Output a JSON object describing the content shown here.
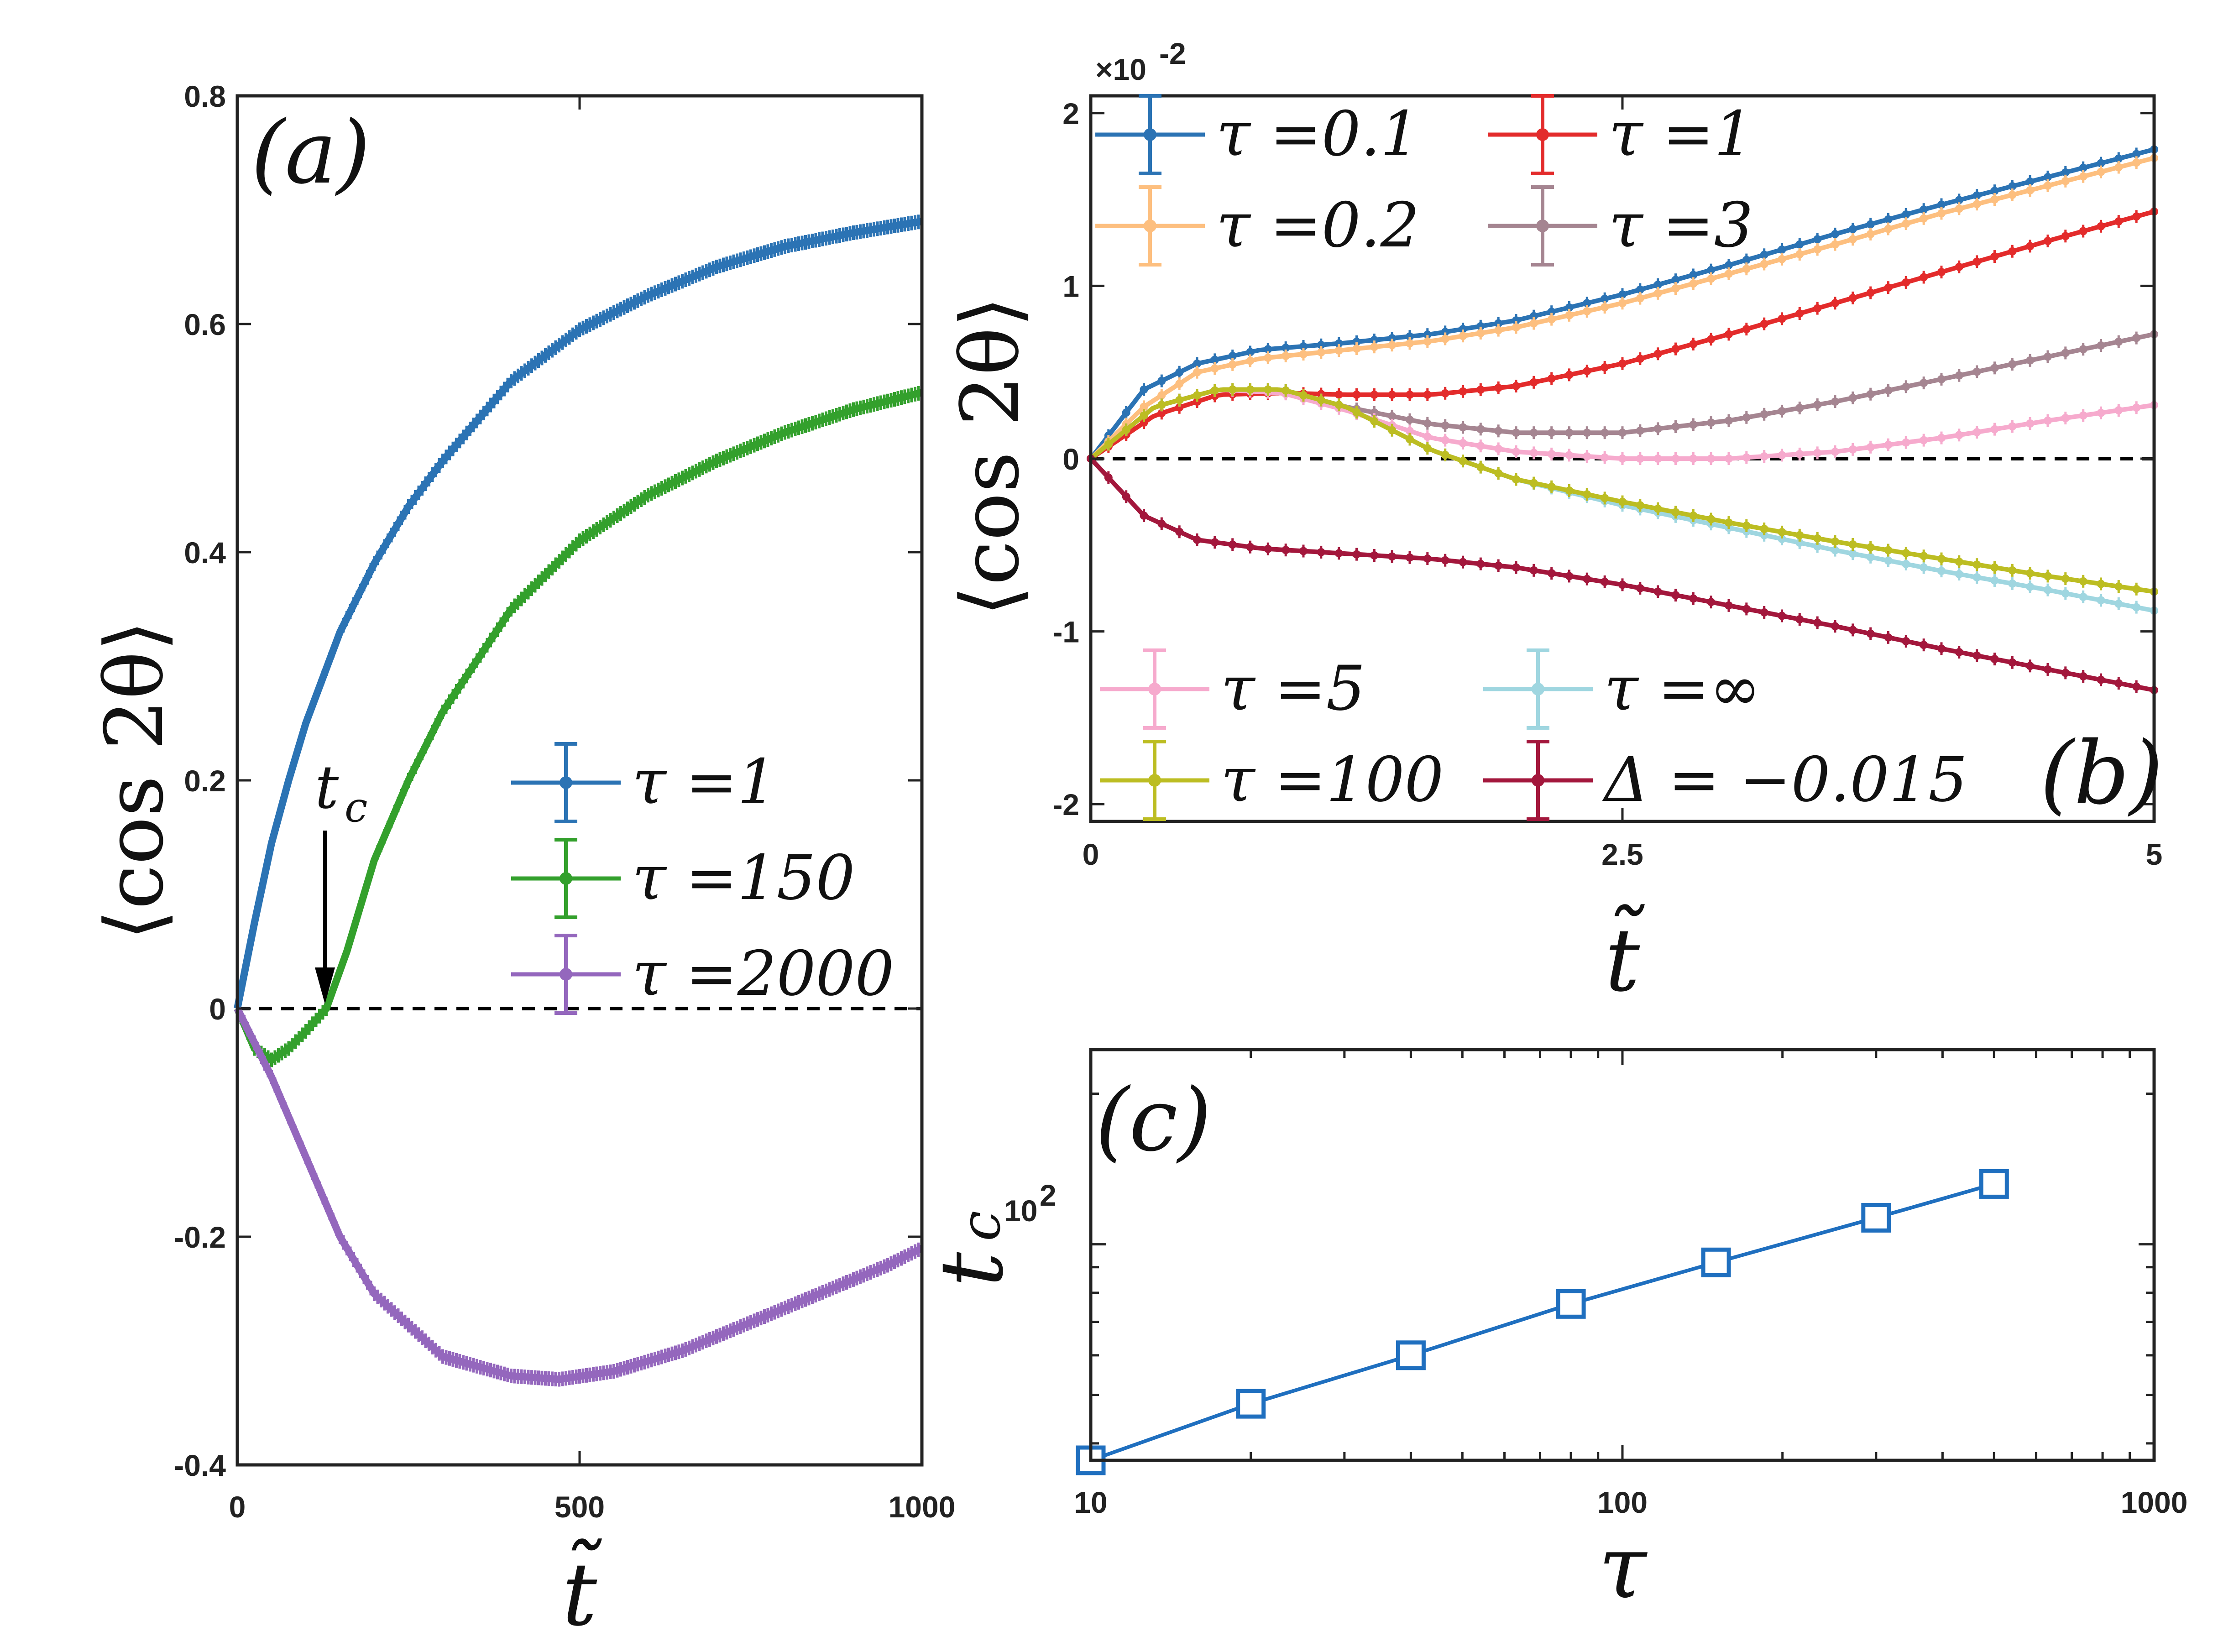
{
  "chart_data": [
    {
      "panel": "(a)",
      "type": "line",
      "xlabel": "t̃",
      "ylabel": "⟨cos 2θ⟩",
      "xlim": [
        0,
        1000
      ],
      "ylim": [
        -0.4,
        0.8
      ],
      "xticks": [
        "0",
        "500",
        "1000"
      ],
      "yticks": [
        "0.8",
        "0.6",
        "0.4",
        "0.2",
        "0",
        "-0.2",
        "-0.4"
      ],
      "legend_position": "center-right",
      "annotation": {
        "label": "t",
        "sub": "c",
        "x": 130,
        "y": 0
      },
      "series": [
        {
          "name": "τ =1",
          "color": "#2b73b4",
          "x": [
            0,
            25,
            50,
            75,
            100,
            150,
            200,
            250,
            300,
            400,
            500,
            600,
            700,
            800,
            900,
            1000
          ],
          "y": [
            0,
            0.075,
            0.145,
            0.2,
            0.25,
            0.33,
            0.39,
            0.44,
            0.48,
            0.55,
            0.595,
            0.625,
            0.65,
            0.668,
            0.68,
            0.69
          ]
        },
        {
          "name": "τ =150",
          "color": "#33a02c",
          "x": [
            0,
            25,
            50,
            75,
            100,
            130,
            160,
            200,
            250,
            300,
            400,
            500,
            600,
            700,
            800,
            900,
            1000
          ],
          "y": [
            0,
            -0.035,
            -0.045,
            -0.035,
            -0.02,
            0,
            0.05,
            0.13,
            0.2,
            0.26,
            0.35,
            0.41,
            0.45,
            0.48,
            0.505,
            0.525,
            0.54
          ]
        },
        {
          "name": "τ =2000",
          "color": "#9467bd",
          "x": [
            0,
            50,
            100,
            150,
            200,
            300,
            400,
            470,
            550,
            650,
            750,
            850,
            950,
            1000
          ],
          "y": [
            0,
            -0.06,
            -0.13,
            -0.2,
            -0.25,
            -0.305,
            -0.322,
            -0.325,
            -0.318,
            -0.3,
            -0.275,
            -0.25,
            -0.225,
            -0.21
          ]
        }
      ]
    },
    {
      "panel": "(b)",
      "type": "line",
      "xlabel": "t̃",
      "ylabel": "⟨cos 2θ⟩",
      "scale_label": "×10",
      "scale_exponent": "-2",
      "xlim": [
        0,
        5
      ],
      "ylim": [
        -2.1,
        2.1
      ],
      "xticks": [
        "0",
        "2.5",
        "5"
      ],
      "yticks": [
        "2",
        "1",
        "0",
        "-1",
        "-2"
      ],
      "legend_position": "top-left and bottom",
      "series": [
        {
          "name": "τ =0.1",
          "color": "#2b73b4",
          "x": [
            0,
            0.25,
            0.5,
            0.8,
            1.2,
            1.6,
            2.0,
            2.5,
            3.0,
            3.5,
            4.0,
            4.5,
            5.0
          ],
          "y": [
            0,
            0.4,
            0.55,
            0.63,
            0.67,
            0.72,
            0.8,
            0.95,
            1.12,
            1.3,
            1.47,
            1.63,
            1.79
          ]
        },
        {
          "name": "τ =0.2",
          "color": "#fdbf7f",
          "x": [
            0,
            0.25,
            0.5,
            0.8,
            1.2,
            1.6,
            2.0,
            2.5,
            3.0,
            3.5,
            4.0,
            4.5,
            5.0
          ],
          "y": [
            0,
            0.3,
            0.5,
            0.58,
            0.63,
            0.68,
            0.76,
            0.9,
            1.07,
            1.24,
            1.42,
            1.58,
            1.74
          ]
        },
        {
          "name": "τ =1",
          "color": "#e32b2b",
          "x": [
            0,
            0.3,
            0.6,
            0.9,
            1.2,
            1.6,
            2.0,
            2.5,
            3.0,
            3.5,
            4.0,
            4.5,
            5.0
          ],
          "y": [
            0,
            0.25,
            0.37,
            0.38,
            0.37,
            0.37,
            0.42,
            0.55,
            0.72,
            0.9,
            1.08,
            1.26,
            1.43
          ]
        },
        {
          "name": "τ =3",
          "color": "#a58591",
          "x": [
            0,
            0.3,
            0.6,
            0.9,
            1.2,
            1.6,
            2.0,
            2.5,
            3.0,
            3.5,
            4.0,
            4.5,
            5.0
          ],
          "y": [
            0,
            0.3,
            0.4,
            0.4,
            0.3,
            0.2,
            0.15,
            0.15,
            0.22,
            0.33,
            0.46,
            0.59,
            0.72
          ]
        },
        {
          "name": "τ =5",
          "color": "#f6aacd",
          "x": [
            0,
            0.3,
            0.6,
            0.9,
            1.2,
            1.6,
            2.0,
            2.5,
            3.0,
            3.5,
            4.0,
            4.5,
            5.0
          ],
          "y": [
            0,
            0.3,
            0.4,
            0.38,
            0.28,
            0.12,
            0.04,
            0.0,
            0.0,
            0.04,
            0.12,
            0.22,
            0.31
          ]
        },
        {
          "name": "τ =∞",
          "color": "#9fd6e0",
          "x": [
            0,
            0.3,
            0.6,
            0.9,
            1.2,
            1.6,
            2.0,
            2.5,
            3.0,
            3.5,
            4.0,
            4.5,
            5.0
          ],
          "y": [
            0,
            0.3,
            0.4,
            0.4,
            0.3,
            0.05,
            -0.12,
            -0.27,
            -0.4,
            -0.53,
            -0.65,
            -0.76,
            -0.88
          ]
        },
        {
          "name": "τ =100",
          "color": "#bcbd22",
          "x": [
            0,
            0.3,
            0.6,
            0.9,
            1.2,
            1.6,
            2.0,
            2.5,
            3.0,
            3.5,
            4.0,
            4.5,
            5.0
          ],
          "y": [
            0,
            0.3,
            0.4,
            0.4,
            0.3,
            0.05,
            -0.12,
            -0.25,
            -0.37,
            -0.48,
            -0.58,
            -0.68,
            -0.77
          ]
        },
        {
          "name": "Δ = −0.015",
          "color": "#a3173c",
          "x": [
            0,
            0.25,
            0.5,
            0.8,
            1.2,
            1.6,
            2.0,
            2.5,
            3.0,
            3.5,
            4.0,
            4.5,
            5.0
          ],
          "y": [
            0,
            -0.33,
            -0.47,
            -0.52,
            -0.55,
            -0.58,
            -0.63,
            -0.73,
            -0.85,
            -0.97,
            -1.1,
            -1.22,
            -1.34
          ]
        }
      ]
    },
    {
      "panel": "(c)",
      "type": "line",
      "xlabel": "τ",
      "ylabel": "t",
      "ylabel_sub": "c",
      "xscale": "log",
      "yscale": "log",
      "xlim": [
        10,
        1000
      ],
      "ylim": [
        37,
        245
      ],
      "xticks": [
        "10",
        "100",
        "1000"
      ],
      "ytick_base": "10",
      "ytick_exp": "2",
      "marker": "square",
      "series": [
        {
          "name": "t_c",
          "color": "#1f6fbf",
          "x": [
            10,
            20,
            40,
            80,
            150,
            300,
            500
          ],
          "y": [
            37,
            48,
            60,
            76,
            92,
            113,
            132
          ]
        }
      ]
    }
  ]
}
